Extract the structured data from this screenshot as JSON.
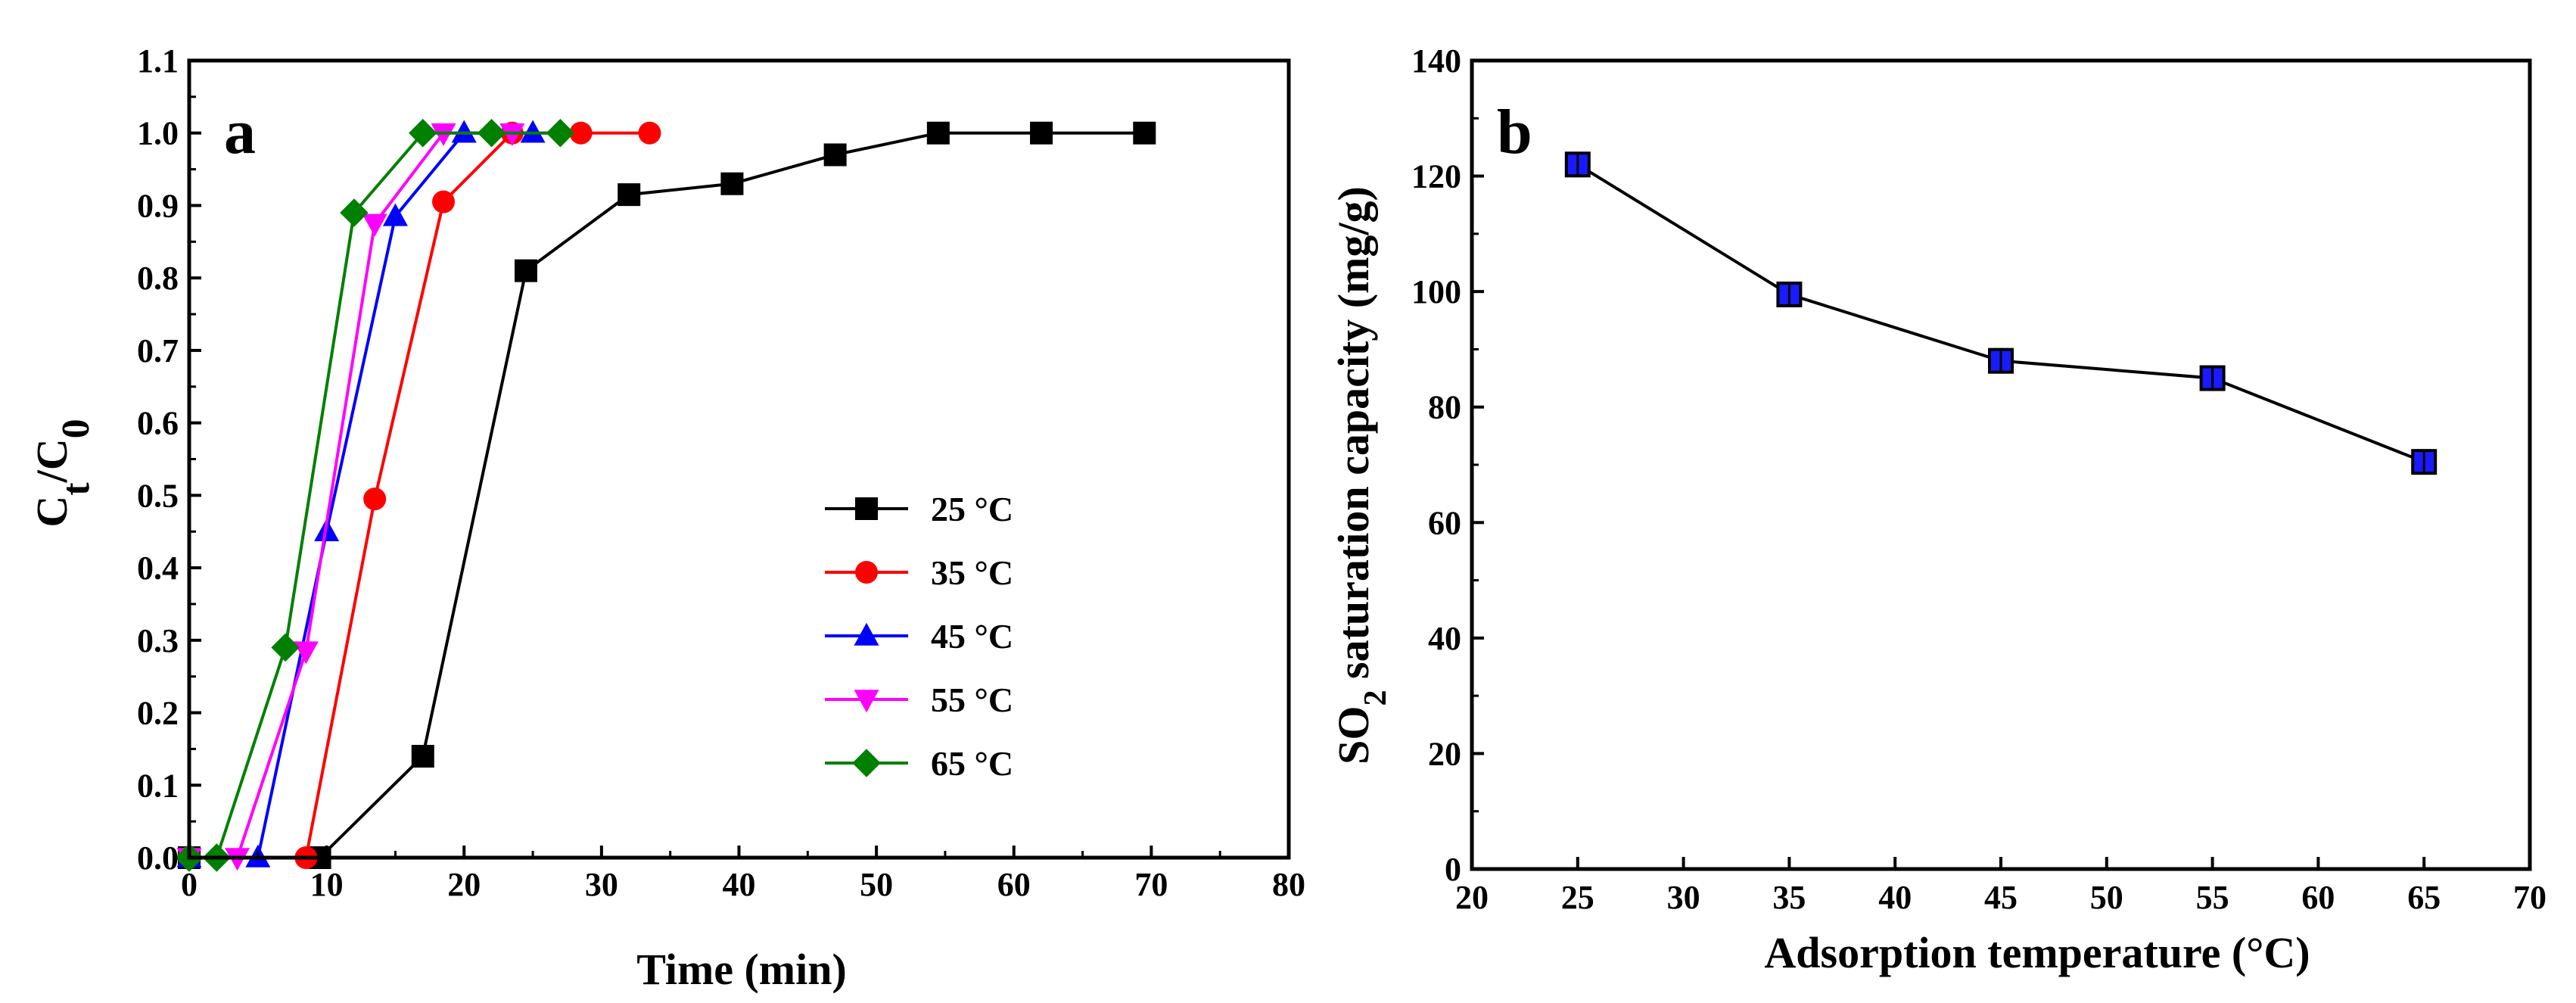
{
  "chart_data": [
    {
      "type": "line",
      "panel_label": "a",
      "xlabel": "Time (min)",
      "ylabel": {
        "main": "C",
        "sub1": "t",
        "mid": "/C",
        "sub2": "0"
      },
      "xlim": [
        0,
        80
      ],
      "ylim": [
        0.0,
        1.1
      ],
      "x_ticks": [
        0,
        10,
        20,
        30,
        40,
        50,
        60,
        70,
        80
      ],
      "x_tick_labels": [
        "0",
        "10",
        "20",
        "30",
        "40",
        "50",
        "60",
        "70",
        "80"
      ],
      "y_ticks": [
        0.0,
        0.1,
        0.2,
        0.3,
        0.4,
        0.5,
        0.6,
        0.7,
        0.8,
        0.9,
        1.0,
        1.1
      ],
      "y_tick_labels": [
        "0.0",
        "0.1",
        "0.2",
        "0.3",
        "0.4",
        "0.5",
        "0.6",
        "0.7",
        "0.8",
        "0.9",
        "1.0",
        "1.1"
      ],
      "legend_position": "center-right",
      "series": [
        {
          "name": "25 °C",
          "color": "#000000",
          "marker": "square",
          "x": [
            0,
            9.5,
            17,
            24.5,
            32,
            39.5,
            47,
            54.5,
            62,
            69.5
          ],
          "y": [
            0.0,
            0.0,
            0.14,
            0.81,
            0.915,
            0.93,
            0.97,
            1.0,
            1.0,
            1.0
          ]
        },
        {
          "name": "35 °C",
          "color": "#ff0000",
          "marker": "circle",
          "x": [
            0,
            8.5,
            13.5,
            18.5,
            23.5,
            28.5,
            33.5
          ],
          "y": [
            0.0,
            0.0,
            0.495,
            0.905,
            1.0,
            1.0,
            1.0
          ]
        },
        {
          "name": "45 °C",
          "color": "#0000ff",
          "marker": "triangle-up",
          "x": [
            0,
            5,
            10,
            15,
            20,
            25
          ],
          "y": [
            0.0,
            0.0,
            0.45,
            0.885,
            1.0,
            1.0
          ]
        },
        {
          "name": "55 °C",
          "color": "#ff00ff",
          "marker": "triangle-down",
          "x": [
            0,
            3.5,
            8.5,
            13.5,
            18.5,
            23.5
          ],
          "y": [
            0.0,
            0.0,
            0.285,
            0.875,
            1.0,
            1.0
          ]
        },
        {
          "name": "65 °C",
          "color": "#008000",
          "marker": "diamond",
          "x": [
            0,
            2,
            7,
            12,
            17,
            22,
            27
          ],
          "y": [
            0.0,
            0.0,
            0.29,
            0.89,
            1.0,
            1.0,
            1.0
          ]
        }
      ]
    },
    {
      "type": "line",
      "panel_label": "b",
      "xlabel": "Adsorption temperature (°C)",
      "ylabel": {
        "main": "SO",
        "sub": "2",
        "rest": " saturation capacity (mg/g)"
      },
      "xlim": [
        20,
        70
      ],
      "ylim": [
        0,
        140
      ],
      "x_ticks": [
        20,
        25,
        30,
        35,
        40,
        45,
        50,
        55,
        60,
        65,
        70
      ],
      "x_tick_labels": [
        "20",
        "25",
        "30",
        "35",
        "40",
        "45",
        "50",
        "55",
        "60",
        "65",
        "70"
      ],
      "y_ticks": [
        0,
        20,
        40,
        60,
        80,
        100,
        120,
        140
      ],
      "y_tick_labels": [
        "0",
        "20",
        "40",
        "60",
        "80",
        "100",
        "120",
        "140"
      ],
      "series": [
        {
          "name": "SO2 saturation capacity",
          "color": "#000000",
          "marker_fill": "#1a1aff",
          "x": [
            25,
            35,
            45,
            55,
            65
          ],
          "y": [
            122,
            99.5,
            88,
            85,
            70.5
          ],
          "error": [
            2,
            2,
            2,
            2,
            2
          ]
        }
      ]
    }
  ]
}
